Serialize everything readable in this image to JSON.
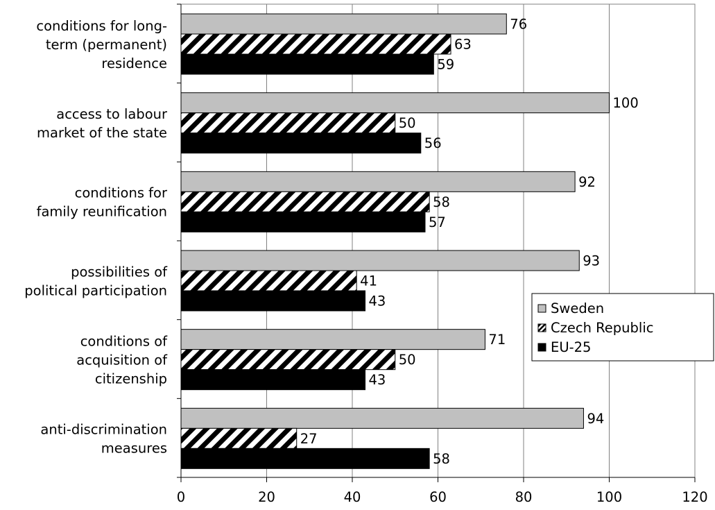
{
  "chart_data": {
    "type": "bar",
    "orientation": "horizontal",
    "categories": [
      [
        "conditions for long-",
        "term (permanent)",
        "residence"
      ],
      [
        "access to labour",
        "market of the state"
      ],
      [
        "conditions for",
        "family reunification"
      ],
      [
        "possibilities of",
        "political participation"
      ],
      [
        "conditions of",
        "acquisition of",
        "citizenship"
      ],
      [
        "anti-discrimination",
        "measures"
      ]
    ],
    "series": [
      {
        "name": "Sweden",
        "values": [
          76,
          100,
          92,
          93,
          71,
          94
        ],
        "fill": "#c0c0c0",
        "pattern": "solid"
      },
      {
        "name": "Czech Republic",
        "values": [
          63,
          50,
          58,
          41,
          50,
          27
        ],
        "fill": "#000000",
        "pattern": "diagonal-hatch"
      },
      {
        "name": "EU-25",
        "values": [
          59,
          56,
          57,
          43,
          43,
          58
        ],
        "fill": "#000000",
        "pattern": "solid"
      }
    ],
    "xlim": [
      0,
      120
    ],
    "xticks": [
      "0",
      "20",
      "40",
      "60",
      "80",
      "100",
      "120"
    ],
    "grid": "vertical",
    "legend": "right"
  }
}
